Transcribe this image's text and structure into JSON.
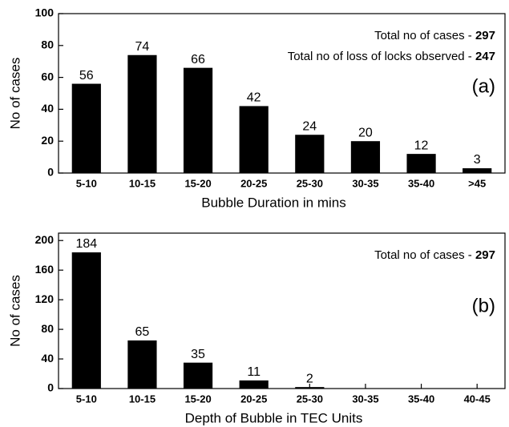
{
  "chart_data": [
    {
      "type": "bar",
      "categories": [
        "5-10",
        "10-15",
        "15-20",
        "20-25",
        "25-30",
        "30-35",
        "35-40",
        ">45"
      ],
      "values": [
        56,
        74,
        66,
        42,
        24,
        20,
        12,
        3
      ],
      "color": "#000000",
      "ylim": [
        0,
        100
      ],
      "yticks": [
        0,
        20,
        40,
        60,
        80,
        100
      ],
      "x_label": "Bubble Duration in mins",
      "y_label": "No of cases",
      "panel_label": "(a)",
      "annotations": [
        {
          "text": "Total no of cases - ",
          "value": 297
        },
        {
          "text": "Total no of loss of locks observed - ",
          "value": 247
        }
      ]
    },
    {
      "type": "bar",
      "categories": [
        "5-10",
        "10-15",
        "15-20",
        "20-25",
        "25-30",
        "30-35",
        "35-40",
        "40-45"
      ],
      "values": [
        184,
        65,
        35,
        11,
        2,
        null,
        null,
        null
      ],
      "color": "#000000",
      "ylim": [
        0,
        210
      ],
      "yticks": [
        0,
        40,
        80,
        120,
        160,
        200
      ],
      "x_label": "Depth of Bubble in TEC Units",
      "y_label": "No of cases",
      "panel_label": "(b)",
      "annotations": [
        {
          "text": "Total no of cases - ",
          "value": 297
        }
      ]
    }
  ]
}
